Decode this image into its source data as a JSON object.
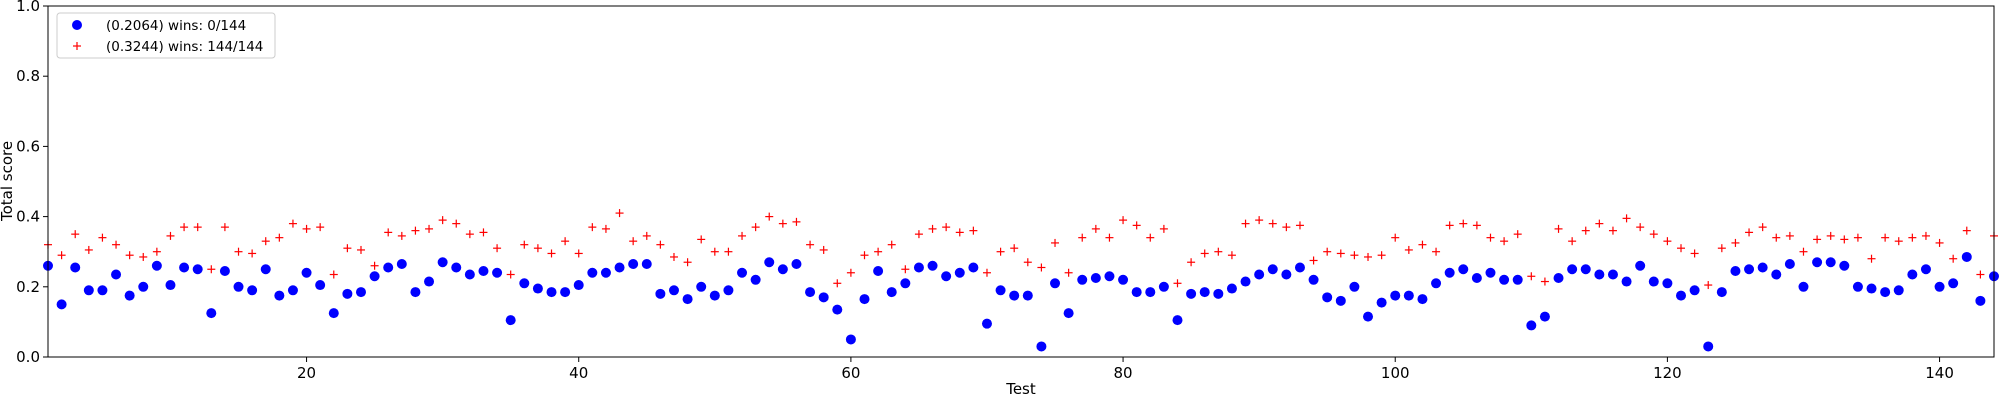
{
  "chart_data": {
    "type": "scatter",
    "title": "",
    "xlabel": "Test",
    "ylabel": "Total score",
    "xlim": [
      1,
      144
    ],
    "ylim": [
      0.0,
      1.0
    ],
    "x_ticks": [
      20,
      40,
      60,
      80,
      100,
      120,
      140
    ],
    "y_ticks": [
      0.0,
      0.2,
      0.4,
      0.6,
      0.8,
      1.0
    ],
    "x_tick_labels": [
      "20",
      "40",
      "60",
      "80",
      "100",
      "120",
      "140"
    ],
    "y_tick_labels": [
      "0.0",
      "0.2",
      "0.4",
      "0.6",
      "0.8",
      "1.0"
    ],
    "grid": false,
    "legend_position": "top-left",
    "series": [
      {
        "name": "(0.2064) wins: 0/144",
        "marker": "filled-circle",
        "color": "#0000ff",
        "x": [
          1,
          2,
          3,
          4,
          5,
          6,
          7,
          8,
          9,
          10,
          11,
          12,
          13,
          14,
          15,
          16,
          17,
          18,
          19,
          20,
          21,
          22,
          23,
          24,
          25,
          26,
          27,
          28,
          29,
          30,
          31,
          32,
          33,
          34,
          35,
          36,
          37,
          38,
          39,
          40,
          41,
          42,
          43,
          44,
          45,
          46,
          47,
          48,
          49,
          50,
          51,
          52,
          53,
          54,
          55,
          56,
          57,
          58,
          59,
          60,
          61,
          62,
          63,
          64,
          65,
          66,
          67,
          68,
          69,
          70,
          71,
          72,
          73,
          74,
          75,
          76,
          77,
          78,
          79,
          80,
          81,
          82,
          83,
          84,
          85,
          86,
          87,
          88,
          89,
          90,
          91,
          92,
          93,
          94,
          95,
          96,
          97,
          98,
          99,
          100,
          101,
          102,
          103,
          104,
          105,
          106,
          107,
          108,
          109,
          110,
          111,
          112,
          113,
          114,
          115,
          116,
          117,
          118,
          119,
          120,
          121,
          122,
          123,
          124,
          125,
          126,
          127,
          128,
          129,
          130,
          131,
          132,
          133,
          134,
          135,
          136,
          137,
          138,
          139,
          140,
          141,
          142,
          143,
          144
        ],
        "y": [
          0.26,
          0.15,
          0.255,
          0.19,
          0.19,
          0.235,
          0.175,
          0.2,
          0.26,
          0.205,
          0.255,
          0.25,
          0.125,
          0.245,
          0.2,
          0.19,
          0.25,
          0.175,
          0.19,
          0.24,
          0.205,
          0.125,
          0.18,
          0.185,
          0.23,
          0.255,
          0.265,
          0.185,
          0.215,
          0.27,
          0.255,
          0.235,
          0.245,
          0.24,
          0.105,
          0.21,
          0.195,
          0.185,
          0.185,
          0.205,
          0.24,
          0.24,
          0.255,
          0.265,
          0.265,
          0.18,
          0.19,
          0.165,
          0.2,
          0.175,
          0.19,
          0.24,
          0.22,
          0.27,
          0.25,
          0.265,
          0.185,
          0.17,
          0.135,
          0.05,
          0.165,
          0.245,
          0.185,
          0.21,
          0.255,
          0.26,
          0.23,
          0.24,
          0.255,
          0.095,
          0.19,
          0.175,
          0.175,
          0.03,
          0.21,
          0.125,
          0.22,
          0.225,
          0.23,
          0.22,
          0.185,
          0.185,
          0.2,
          0.105,
          0.18,
          0.185,
          0.18,
          0.195,
          0.215,
          0.235,
          0.25,
          0.235,
          0.255,
          0.22,
          0.17,
          0.16,
          0.2,
          0.115,
          0.155,
          0.175,
          0.175,
          0.165,
          0.21,
          0.24,
          0.25,
          0.225,
          0.24,
          0.22,
          0.22,
          0.09,
          0.115,
          0.225,
          0.25,
          0.25,
          0.235,
          0.235,
          0.215,
          0.26,
          0.215,
          0.21,
          0.175,
          0.19,
          0.03,
          0.185,
          0.245,
          0.25,
          0.255,
          0.235,
          0.265,
          0.2,
          0.27,
          0.27,
          0.26,
          0.2,
          0.195,
          0.185,
          0.19,
          0.235,
          0.25,
          0.2,
          0.21,
          0.285,
          0.16,
          0.23
        ]
      },
      {
        "name": "(0.3244) wins: 144/144",
        "marker": "plus",
        "color": "#ff0000",
        "x": [
          1,
          2,
          3,
          4,
          5,
          6,
          7,
          8,
          9,
          10,
          11,
          12,
          13,
          14,
          15,
          16,
          17,
          18,
          19,
          20,
          21,
          22,
          23,
          24,
          25,
          26,
          27,
          28,
          29,
          30,
          31,
          32,
          33,
          34,
          35,
          36,
          37,
          38,
          39,
          40,
          41,
          42,
          43,
          44,
          45,
          46,
          47,
          48,
          49,
          50,
          51,
          52,
          53,
          54,
          55,
          56,
          57,
          58,
          59,
          60,
          61,
          62,
          63,
          64,
          65,
          66,
          67,
          68,
          69,
          70,
          71,
          72,
          73,
          74,
          75,
          76,
          77,
          78,
          79,
          80,
          81,
          82,
          83,
          84,
          85,
          86,
          87,
          88,
          89,
          90,
          91,
          92,
          93,
          94,
          95,
          96,
          97,
          98,
          99,
          100,
          101,
          102,
          103,
          104,
          105,
          106,
          107,
          108,
          109,
          110,
          111,
          112,
          113,
          114,
          115,
          116,
          117,
          118,
          119,
          120,
          121,
          122,
          123,
          124,
          125,
          126,
          127,
          128,
          129,
          130,
          131,
          132,
          133,
          134,
          135,
          136,
          137,
          138,
          139,
          140,
          141,
          142,
          143,
          144
        ],
        "y": [
          0.32,
          0.29,
          0.35,
          0.305,
          0.34,
          0.32,
          0.29,
          0.285,
          0.3,
          0.345,
          0.37,
          0.37,
          0.25,
          0.37,
          0.3,
          0.295,
          0.33,
          0.34,
          0.38,
          0.365,
          0.37,
          0.235,
          0.31,
          0.305,
          0.26,
          0.355,
          0.345,
          0.36,
          0.365,
          0.39,
          0.38,
          0.35,
          0.355,
          0.31,
          0.235,
          0.32,
          0.31,
          0.295,
          0.33,
          0.295,
          0.37,
          0.365,
          0.41,
          0.33,
          0.345,
          0.32,
          0.285,
          0.27,
          0.335,
          0.3,
          0.3,
          0.345,
          0.37,
          0.4,
          0.38,
          0.385,
          0.32,
          0.305,
          0.21,
          0.24,
          0.29,
          0.3,
          0.32,
          0.25,
          0.35,
          0.365,
          0.37,
          0.355,
          0.36,
          0.24,
          0.3,
          0.31,
          0.27,
          0.255,
          0.325,
          0.24,
          0.34,
          0.365,
          0.34,
          0.39,
          0.375,
          0.34,
          0.365,
          0.21,
          0.27,
          0.295,
          0.3,
          0.29,
          0.38,
          0.39,
          0.38,
          0.37,
          0.375,
          0.275,
          0.3,
          0.295,
          0.29,
          0.285,
          0.29,
          0.34,
          0.305,
          0.32,
          0.3,
          0.375,
          0.38,
          0.375,
          0.34,
          0.33,
          0.35,
          0.23,
          0.215,
          0.365,
          0.33,
          0.36,
          0.38,
          0.36,
          0.395,
          0.37,
          0.35,
          0.33,
          0.31,
          0.295,
          0.205,
          0.31,
          0.325,
          0.355,
          0.37,
          0.34,
          0.345,
          0.3,
          0.335,
          0.345,
          0.335,
          0.34,
          0.28,
          0.34,
          0.33,
          0.34,
          0.345,
          0.325,
          0.28,
          0.36,
          0.235,
          0.345
        ]
      }
    ]
  }
}
